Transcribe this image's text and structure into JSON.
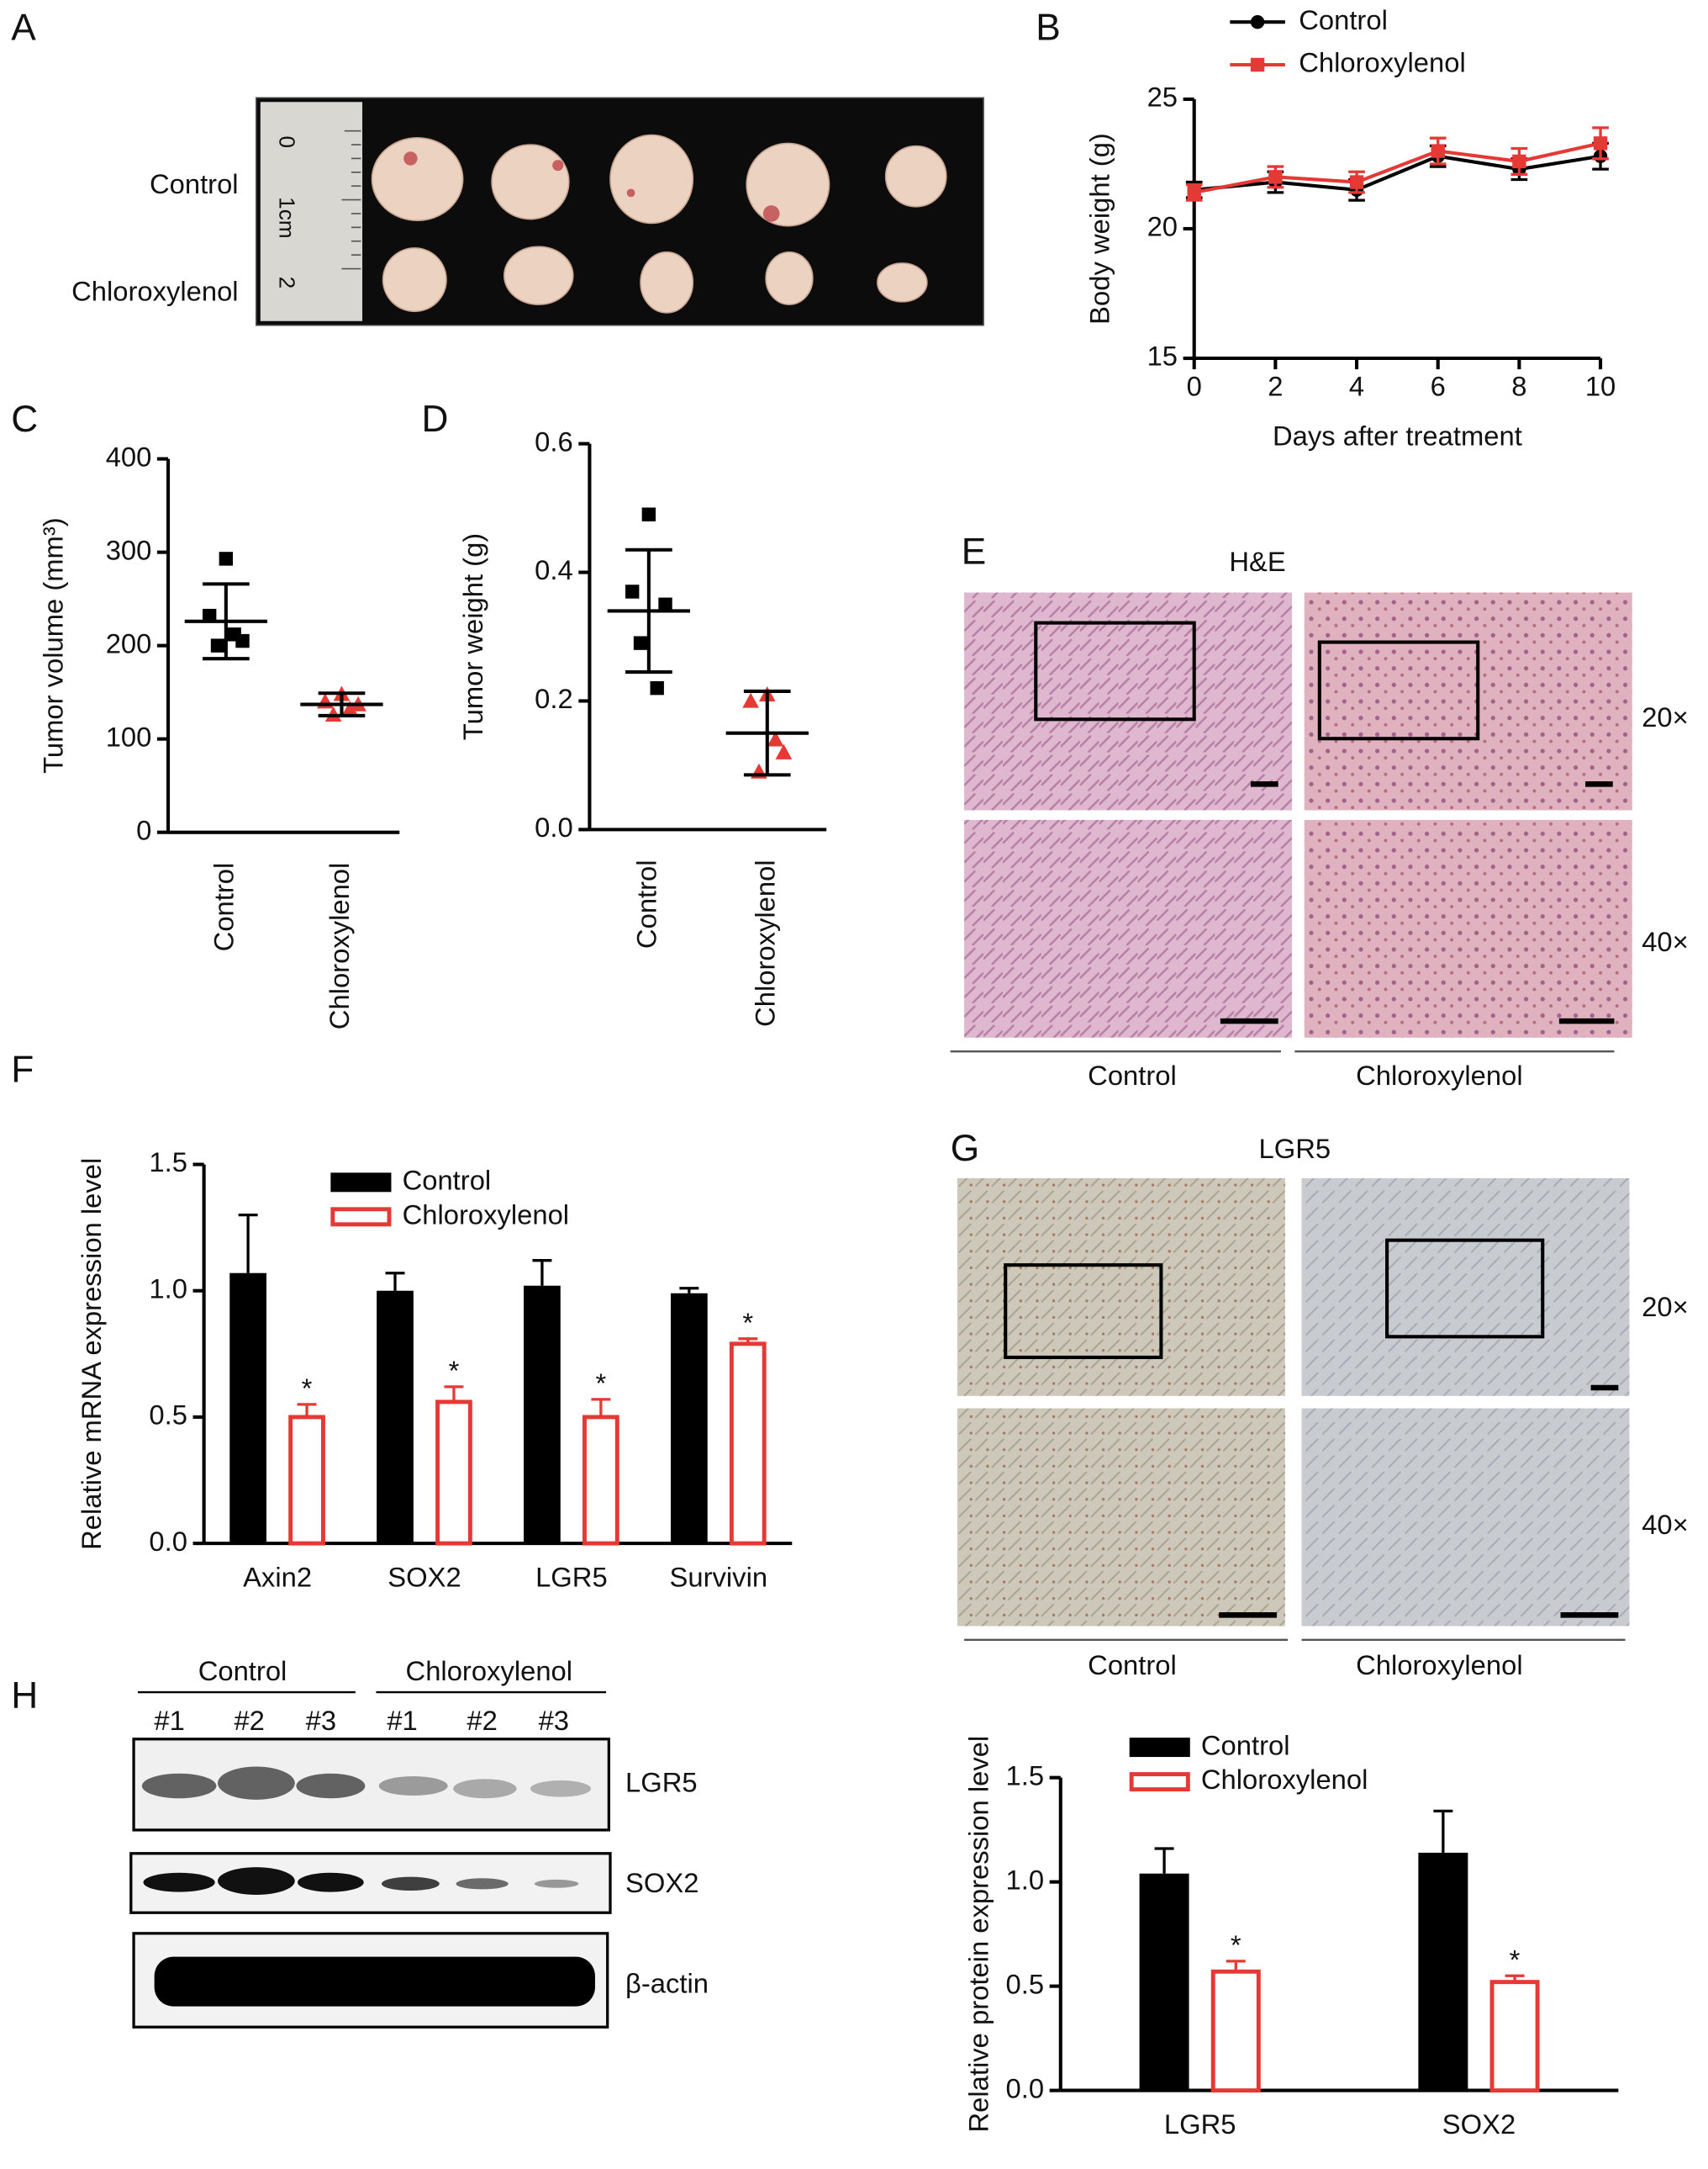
{
  "panel_labels": [
    "A",
    "B",
    "C",
    "D",
    "E",
    "F",
    "G",
    "H"
  ],
  "panel_a": {
    "row_labels": [
      "Control",
      "Chloroxylenol"
    ],
    "ruler_labels": [
      "0",
      "1cm",
      "2"
    ]
  },
  "panel_e": {
    "stain": "H&E",
    "magnifications": [
      "20×",
      "40×"
    ],
    "groups": [
      "Control",
      "Chloroxylenol"
    ]
  },
  "panel_g": {
    "stain": "LGR5",
    "magnifications": [
      "20×",
      "40×"
    ],
    "groups": [
      "Control",
      "Chloroxylenol"
    ]
  },
  "panel_h": {
    "groups": [
      "Control",
      "Chloroxylenol"
    ],
    "lanes": [
      "#1",
      "#2",
      "#3",
      "#1",
      "#2",
      "#3"
    ],
    "bands": [
      "LGR5",
      "SOX2",
      "β-actin"
    ]
  },
  "chart_data": [
    {
      "type": "line",
      "x_label": "Days after treatment",
      "y_label": "Body weight (g)",
      "x": [
        0,
        2,
        4,
        6,
        8,
        10
      ],
      "xlim": [
        0,
        10
      ],
      "xticks": [
        0,
        2,
        4,
        6,
        8,
        10
      ],
      "ylim": [
        15,
        25
      ],
      "yticks": [
        15,
        20,
        25
      ],
      "legend": "top",
      "series": [
        {
          "name": "Control",
          "color": "#000000",
          "marker": "circle",
          "values": [
            21.5,
            21.8,
            21.5,
            22.8,
            22.3,
            22.8
          ],
          "errors": [
            0.3,
            0.4,
            0.4,
            0.4,
            0.4,
            0.5
          ]
        },
        {
          "name": "Chloroxylenol",
          "color": "#e53935",
          "marker": "square",
          "values": [
            21.4,
            22.0,
            21.8,
            23.0,
            22.6,
            23.3
          ],
          "errors": [
            0.3,
            0.4,
            0.4,
            0.5,
            0.5,
            0.6
          ]
        }
      ]
    },
    {
      "type": "dotplot",
      "y_label": "Tumor volume (mm³)",
      "categories": [
        "Control",
        "Chloroxylenol"
      ],
      "colors": [
        "#000000",
        "#e53935"
      ],
      "ylim": [
        0,
        400
      ],
      "yticks": [
        0,
        100,
        200,
        300,
        400
      ],
      "points": [
        [
          293,
          232,
          205,
          200,
          212
        ],
        [
          148,
          140,
          137,
          126,
          132
        ]
      ],
      "means": [
        226,
        137
      ],
      "sd": [
        40,
        12
      ]
    },
    {
      "type": "dotplot",
      "y_label": "Tumor weight (g)",
      "categories": [
        "Control",
        "Chloroxylenol"
      ],
      "colors": [
        "#000000",
        "#e53935"
      ],
      "ylim": [
        0,
        0.6
      ],
      "yticks": [
        {
          "value": 0,
          "label": "0.0"
        },
        0.2,
        0.4,
        0.6
      ],
      "points": [
        [
          0.49,
          0.37,
          0.35,
          0.29,
          0.22
        ],
        [
          0.21,
          0.2,
          0.12,
          0.09,
          0.14
        ]
      ],
      "means": [
        0.34,
        0.15
      ],
      "sd": [
        0.095,
        0.065
      ]
    },
    {
      "type": "bar",
      "y_label": "Relative mRNA expression level",
      "categories": [
        "Axin2",
        "SOX2",
        "LGR5",
        "Survivin"
      ],
      "ylim": [
        0,
        1.5
      ],
      "yticks": [
        {
          "value": 0,
          "label": "0.0"
        },
        0.5,
        {
          "value": 1,
          "label": "1.0"
        },
        1.5
      ],
      "legend": "top",
      "series": [
        {
          "name": "Control",
          "color": "#000000",
          "values": [
            1.07,
            1.0,
            1.02,
            0.99
          ],
          "errors": [
            0.23,
            0.07,
            0.1,
            0.02
          ]
        },
        {
          "name": "Chloroxylenol",
          "color": "#e53935",
          "values": [
            0.5,
            0.56,
            0.5,
            0.79
          ],
          "errors": [
            0.05,
            0.06,
            0.07,
            0.02
          ],
          "annotations": [
            "*",
            "*",
            "*",
            "*"
          ]
        }
      ]
    },
    {
      "type": "bar",
      "y_label": "Relative protein expression level",
      "categories": [
        "LGR5",
        "SOX2"
      ],
      "ylim": [
        0,
        1.5
      ],
      "yticks": [
        {
          "value": 0,
          "label": "0.0"
        },
        0.5,
        {
          "value": 1,
          "label": "1.0"
        },
        1.5
      ],
      "legend": "top",
      "series": [
        {
          "name": "Control",
          "color": "#000000",
          "values": [
            1.04,
            1.14
          ],
          "errors": [
            0.12,
            0.2
          ]
        },
        {
          "name": "Chloroxylenol",
          "color": "#e53935",
          "values": [
            0.57,
            0.52
          ],
          "errors": [
            0.05,
            0.03
          ],
          "annotations": [
            "*",
            "*"
          ]
        }
      ]
    }
  ]
}
